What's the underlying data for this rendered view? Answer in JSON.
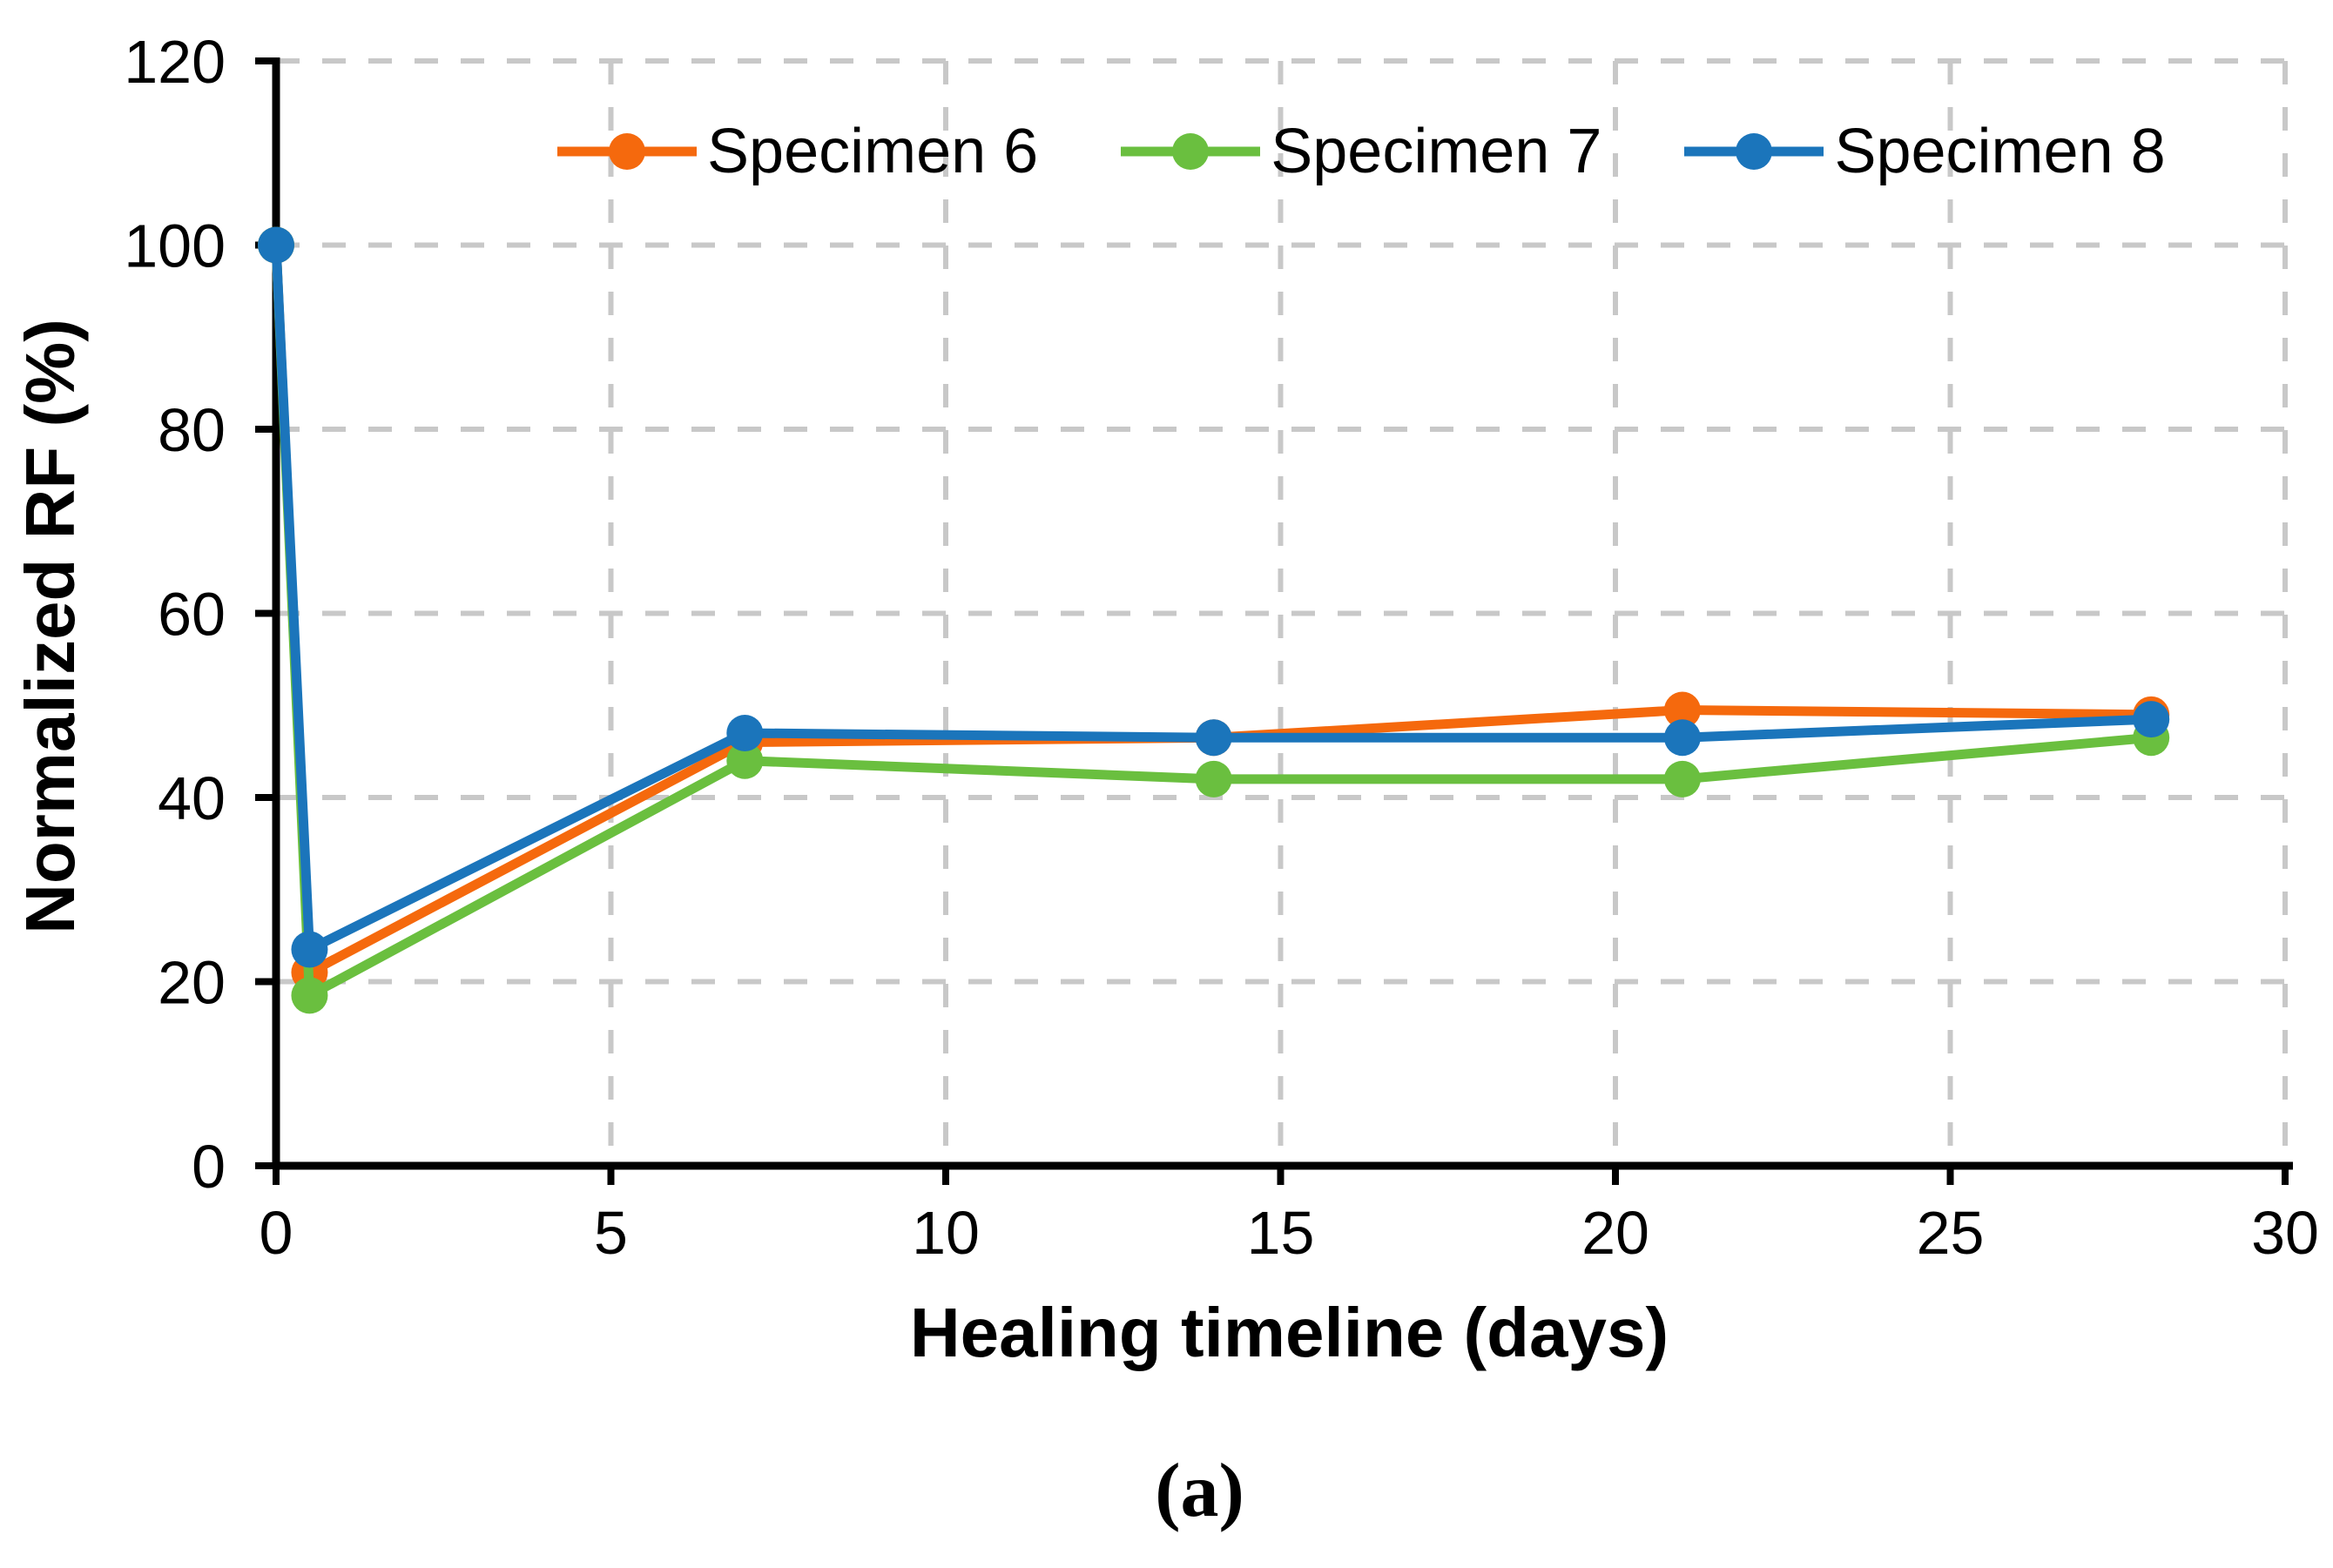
{
  "figure": {
    "caption": "(a)"
  },
  "chart_data": {
    "type": "line",
    "title": "",
    "xlabel": "Healing timeline (days)",
    "ylabel": "Normalized RF (%)",
    "xlim": [
      0,
      30
    ],
    "ylim": [
      0,
      120
    ],
    "x_ticks": [
      0,
      5,
      10,
      15,
      20,
      25,
      30
    ],
    "y_ticks": [
      0,
      20,
      40,
      60,
      80,
      100,
      120
    ],
    "grid": "dashed",
    "grid_color": "#c8c8c8",
    "axis_color": "#000000",
    "legend_position": "top-center",
    "marker": "circle",
    "x": [
      0,
      0.5,
      7,
      14,
      21,
      28
    ],
    "series": [
      {
        "name": "Specimen 6",
        "color": "#F5690D",
        "values": [
          100,
          21,
          46,
          46.5,
          49.5,
          49
        ]
      },
      {
        "name": "Specimen 7",
        "color": "#6ABF3F",
        "values": [
          100,
          18.5,
          44,
          42,
          42,
          46.5
        ]
      },
      {
        "name": "Specimen 8",
        "color": "#1B75BB",
        "values": [
          100,
          23.5,
          47,
          46.5,
          46.5,
          48.5
        ]
      }
    ]
  }
}
